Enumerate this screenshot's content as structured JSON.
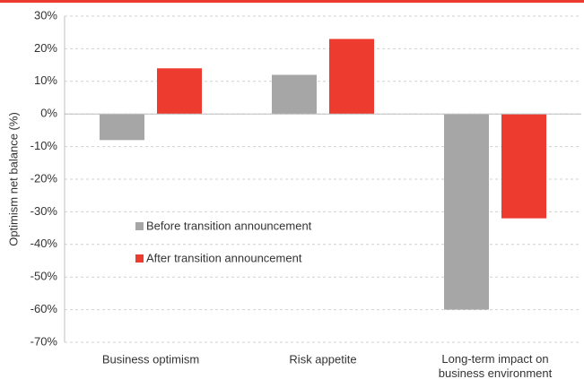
{
  "chart_data": {
    "type": "bar",
    "y_label": "Optimism net balance (%)",
    "categories": [
      "Business optimism",
      "Risk appetite",
      "Long-term impact on\nbusiness environment"
    ],
    "series": [
      {
        "name": "Before transition announcement",
        "color": "#a6a6a6",
        "values": [
          -8,
          12,
          -60
        ]
      },
      {
        "name": "After transition announcement",
        "color": "#ee3b2f",
        "values": [
          14,
          23,
          -32
        ]
      }
    ],
    "ylim": [
      -70,
      30
    ],
    "yticks": [
      {
        "value": -70,
        "label": "-70%"
      },
      {
        "value": -60,
        "label": "-60%"
      },
      {
        "value": -50,
        "label": "-50%"
      },
      {
        "value": -40,
        "label": "-40%"
      },
      {
        "value": -30,
        "label": "-30%"
      },
      {
        "value": -20,
        "label": "-20%"
      },
      {
        "value": -10,
        "label": "-10%"
      },
      {
        "value": 0,
        "label": "0%"
      },
      {
        "value": 10,
        "label": "10%"
      },
      {
        "value": 20,
        "label": "20%"
      },
      {
        "value": 30,
        "label": "30%"
      }
    ],
    "grid": true
  }
}
